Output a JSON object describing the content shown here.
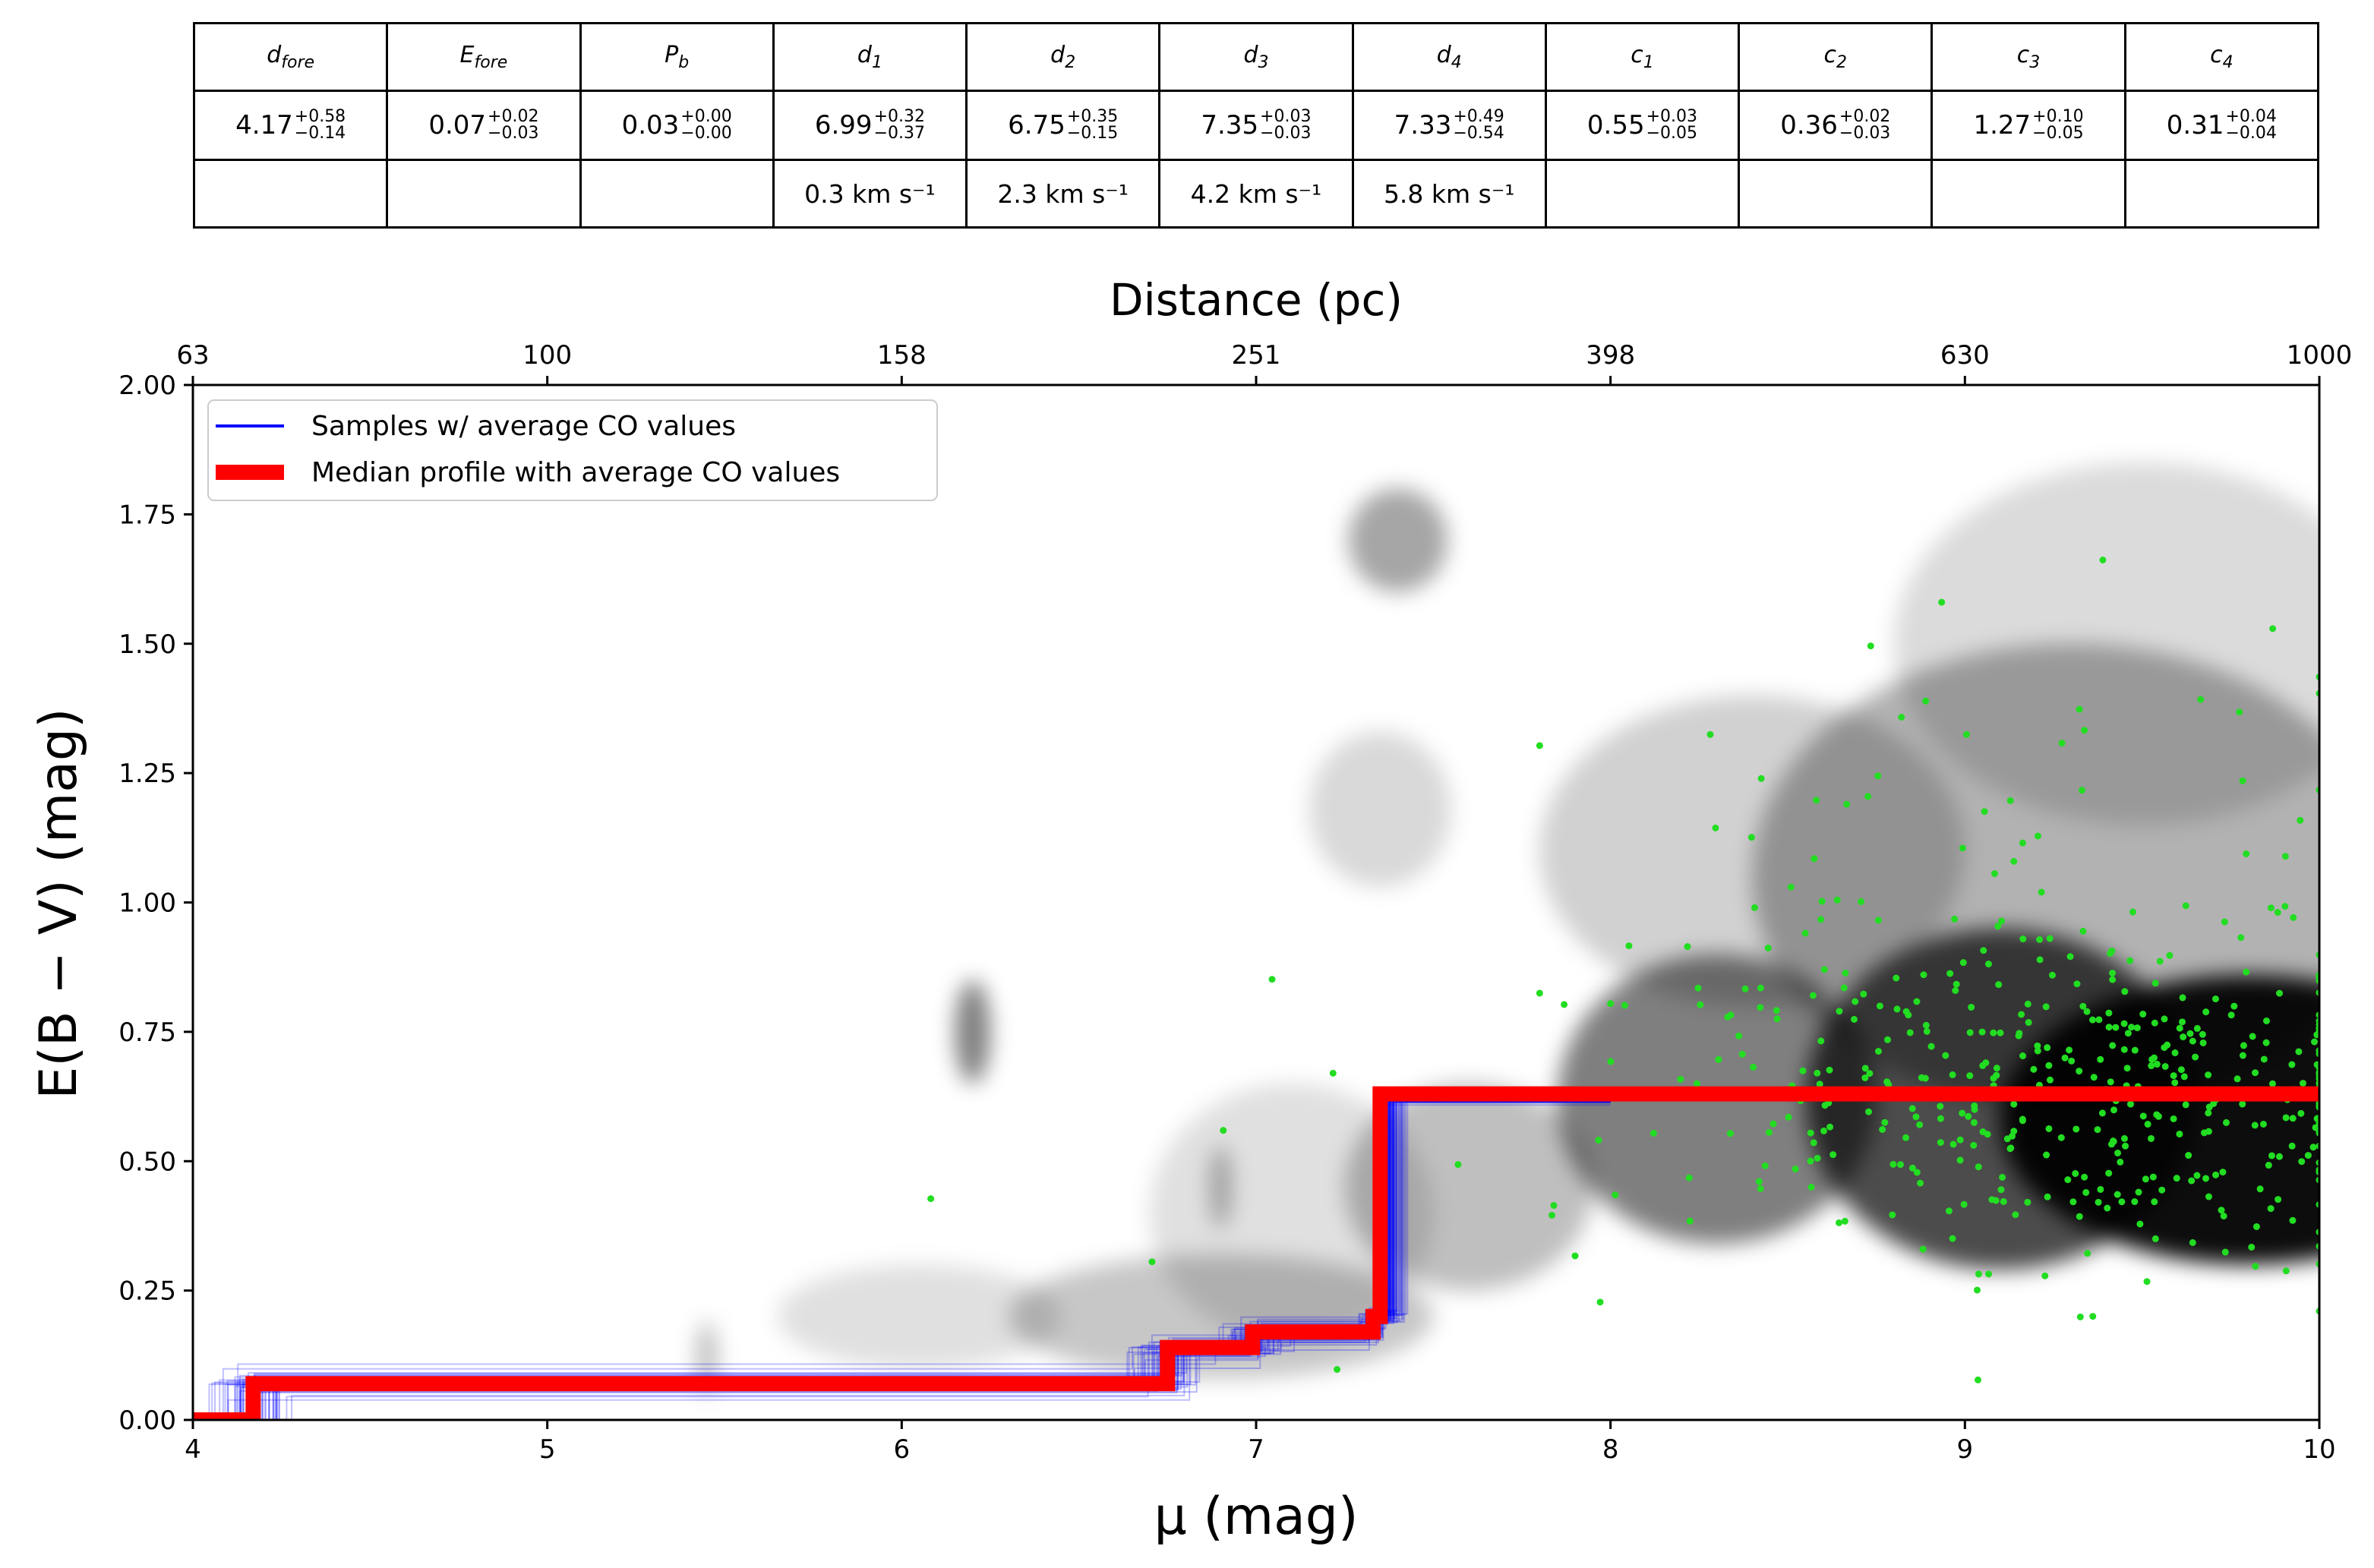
{
  "table": {
    "headers": [
      {
        "sym": "d",
        "sub": "fore"
      },
      {
        "sym": "E",
        "sub": "fore"
      },
      {
        "sym": "P",
        "sub": "b"
      },
      {
        "sym": "d",
        "sub": "1"
      },
      {
        "sym": "d",
        "sub": "2"
      },
      {
        "sym": "d",
        "sub": "3"
      },
      {
        "sym": "d",
        "sub": "4"
      },
      {
        "sym": "c",
        "sub": "1"
      },
      {
        "sym": "c",
        "sub": "2"
      },
      {
        "sym": "c",
        "sub": "3"
      },
      {
        "sym": "c",
        "sub": "4"
      }
    ],
    "values": [
      {
        "v": "4.17",
        "up": "+0.58",
        "lo": "−0.14"
      },
      {
        "v": "0.07",
        "up": "+0.02",
        "lo": "−0.03"
      },
      {
        "v": "0.03",
        "up": "+0.00",
        "lo": "−0.00"
      },
      {
        "v": "6.99",
        "up": "+0.32",
        "lo": "−0.37"
      },
      {
        "v": "6.75",
        "up": "+0.35",
        "lo": "−0.15"
      },
      {
        "v": "7.35",
        "up": "+0.03",
        "lo": "−0.03"
      },
      {
        "v": "7.33",
        "up": "+0.49",
        "lo": "−0.54"
      },
      {
        "v": "0.55",
        "up": "+0.03",
        "lo": "−0.05"
      },
      {
        "v": "0.36",
        "up": "+0.02",
        "lo": "−0.03"
      },
      {
        "v": "1.27",
        "up": "+0.10",
        "lo": "−0.05"
      },
      {
        "v": "0.31",
        "up": "+0.04",
        "lo": "−0.04"
      }
    ],
    "velocities": [
      "",
      "",
      "",
      "0.3 km s⁻¹",
      "2.3 km s⁻¹",
      "4.2 km s⁻¹",
      "5.8 km s⁻¹",
      "",
      "",
      "",
      ""
    ]
  },
  "chart_data": {
    "type": "line",
    "xlabel": "μ (mag)",
    "ylabel": "E(B − V) (mag)",
    "top_xlabel": "Distance (pc)",
    "xlim": [
      4,
      10
    ],
    "ylim": [
      0.0,
      2.0
    ],
    "xticks": [
      4,
      5,
      6,
      7,
      8,
      9,
      10
    ],
    "xtick_labels": [
      "4",
      "5",
      "6",
      "7",
      "8",
      "9",
      "10"
    ],
    "yticks": [
      0.0,
      0.25,
      0.5,
      0.75,
      1.0,
      1.25,
      1.5,
      1.75,
      2.0
    ],
    "ytick_labels": [
      "0.00",
      "0.25",
      "0.50",
      "0.75",
      "1.00",
      "1.25",
      "1.50",
      "1.75",
      "2.00"
    ],
    "top_xticks": [
      4,
      5,
      6,
      7,
      8,
      9,
      10
    ],
    "top_xtick_labels": [
      "63",
      "100",
      "158",
      "251",
      "398",
      "630",
      "1000"
    ],
    "legend_position": "top-left",
    "grid": false,
    "legend": [
      {
        "label": "Samples  w/ average CO values",
        "color": "#0000ff"
      },
      {
        "label": "Median profile with average CO values",
        "color": "#ff0000"
      }
    ],
    "colors": {
      "samples": "#0000ff",
      "median": "#ff0000",
      "stars": "#22dd22",
      "density": "#000000"
    },
    "series": [
      {
        "name": "Median profile with average CO values",
        "x": [
          4.0,
          4.17,
          4.17,
          6.75,
          6.75,
          6.99,
          6.99,
          7.33,
          7.33,
          7.35,
          7.35,
          10.0
        ],
        "y": [
          0.0,
          0.0,
          0.07,
          0.07,
          0.14,
          0.14,
          0.17,
          0.17,
          0.2,
          0.2,
          0.63,
          0.63
        ]
      }
    ],
    "density_blobs": [
      {
        "x": 9.8,
        "y": 0.58,
        "sx": 0.7,
        "sy": 0.28,
        "w": 0.95
      },
      {
        "x": 9.1,
        "y": 0.62,
        "sx": 0.55,
        "sy": 0.33,
        "w": 0.7
      },
      {
        "x": 8.3,
        "y": 0.62,
        "sx": 0.45,
        "sy": 0.28,
        "w": 0.5
      },
      {
        "x": 9.3,
        "y": 1.05,
        "sx": 0.9,
        "sy": 0.45,
        "w": 0.3
      },
      {
        "x": 8.4,
        "y": 1.1,
        "sx": 0.6,
        "sy": 0.3,
        "w": 0.18
      },
      {
        "x": 9.5,
        "y": 1.5,
        "sx": 0.7,
        "sy": 0.35,
        "w": 0.14
      },
      {
        "x": 7.4,
        "y": 1.7,
        "sx": 0.14,
        "sy": 0.1,
        "w": 0.35
      },
      {
        "x": 7.35,
        "y": 1.18,
        "sx": 0.2,
        "sy": 0.15,
        "w": 0.15
      },
      {
        "x": 7.6,
        "y": 0.45,
        "sx": 0.35,
        "sy": 0.2,
        "w": 0.25
      },
      {
        "x": 6.2,
        "y": 0.75,
        "sx": 0.05,
        "sy": 0.1,
        "w": 0.5
      },
      {
        "x": 6.9,
        "y": 0.2,
        "sx": 0.6,
        "sy": 0.12,
        "w": 0.22
      },
      {
        "x": 6.05,
        "y": 0.2,
        "sx": 0.4,
        "sy": 0.1,
        "w": 0.12
      },
      {
        "x": 6.9,
        "y": 0.45,
        "sx": 0.03,
        "sy": 0.08,
        "w": 0.3
      },
      {
        "x": 5.45,
        "y": 0.12,
        "sx": 0.03,
        "sy": 0.07,
        "w": 0.25
      },
      {
        "x": 7.1,
        "y": 0.4,
        "sx": 0.4,
        "sy": 0.25,
        "w": 0.12
      }
    ]
  }
}
